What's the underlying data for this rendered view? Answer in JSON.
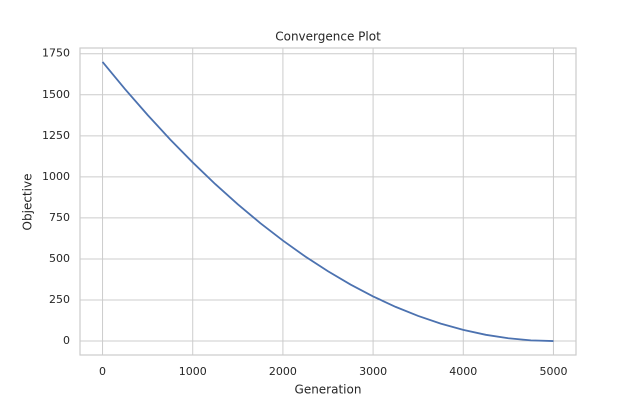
{
  "chart_data": {
    "type": "line",
    "title": "Convergence Plot",
    "x_label": "Generation",
    "y_label": "Objective",
    "x": [
      0,
      250,
      500,
      750,
      1000,
      1250,
      1500,
      1750,
      2000,
      2250,
      2500,
      2750,
      3000,
      3250,
      3500,
      3750,
      4000,
      4250,
      4500,
      4750,
      5000
    ],
    "series": [
      {
        "color": "#4c72b0",
        "values": [
          1700,
          1534,
          1377,
          1228,
          1088,
          956,
          833,
          718,
          612,
          514,
          425,
          344,
          272,
          208,
          153,
          106,
          68,
          38,
          17,
          4,
          0
        ]
      }
    ],
    "xlim": [
      -250,
      5250
    ],
    "xticks": [
      0,
      1000,
      2000,
      3000,
      4000,
      5000
    ],
    "ylim": [
      -85,
      1785
    ],
    "yticks": [
      0,
      250,
      500,
      750,
      1000,
      1250,
      1500,
      1750
    ],
    "grid": true
  }
}
